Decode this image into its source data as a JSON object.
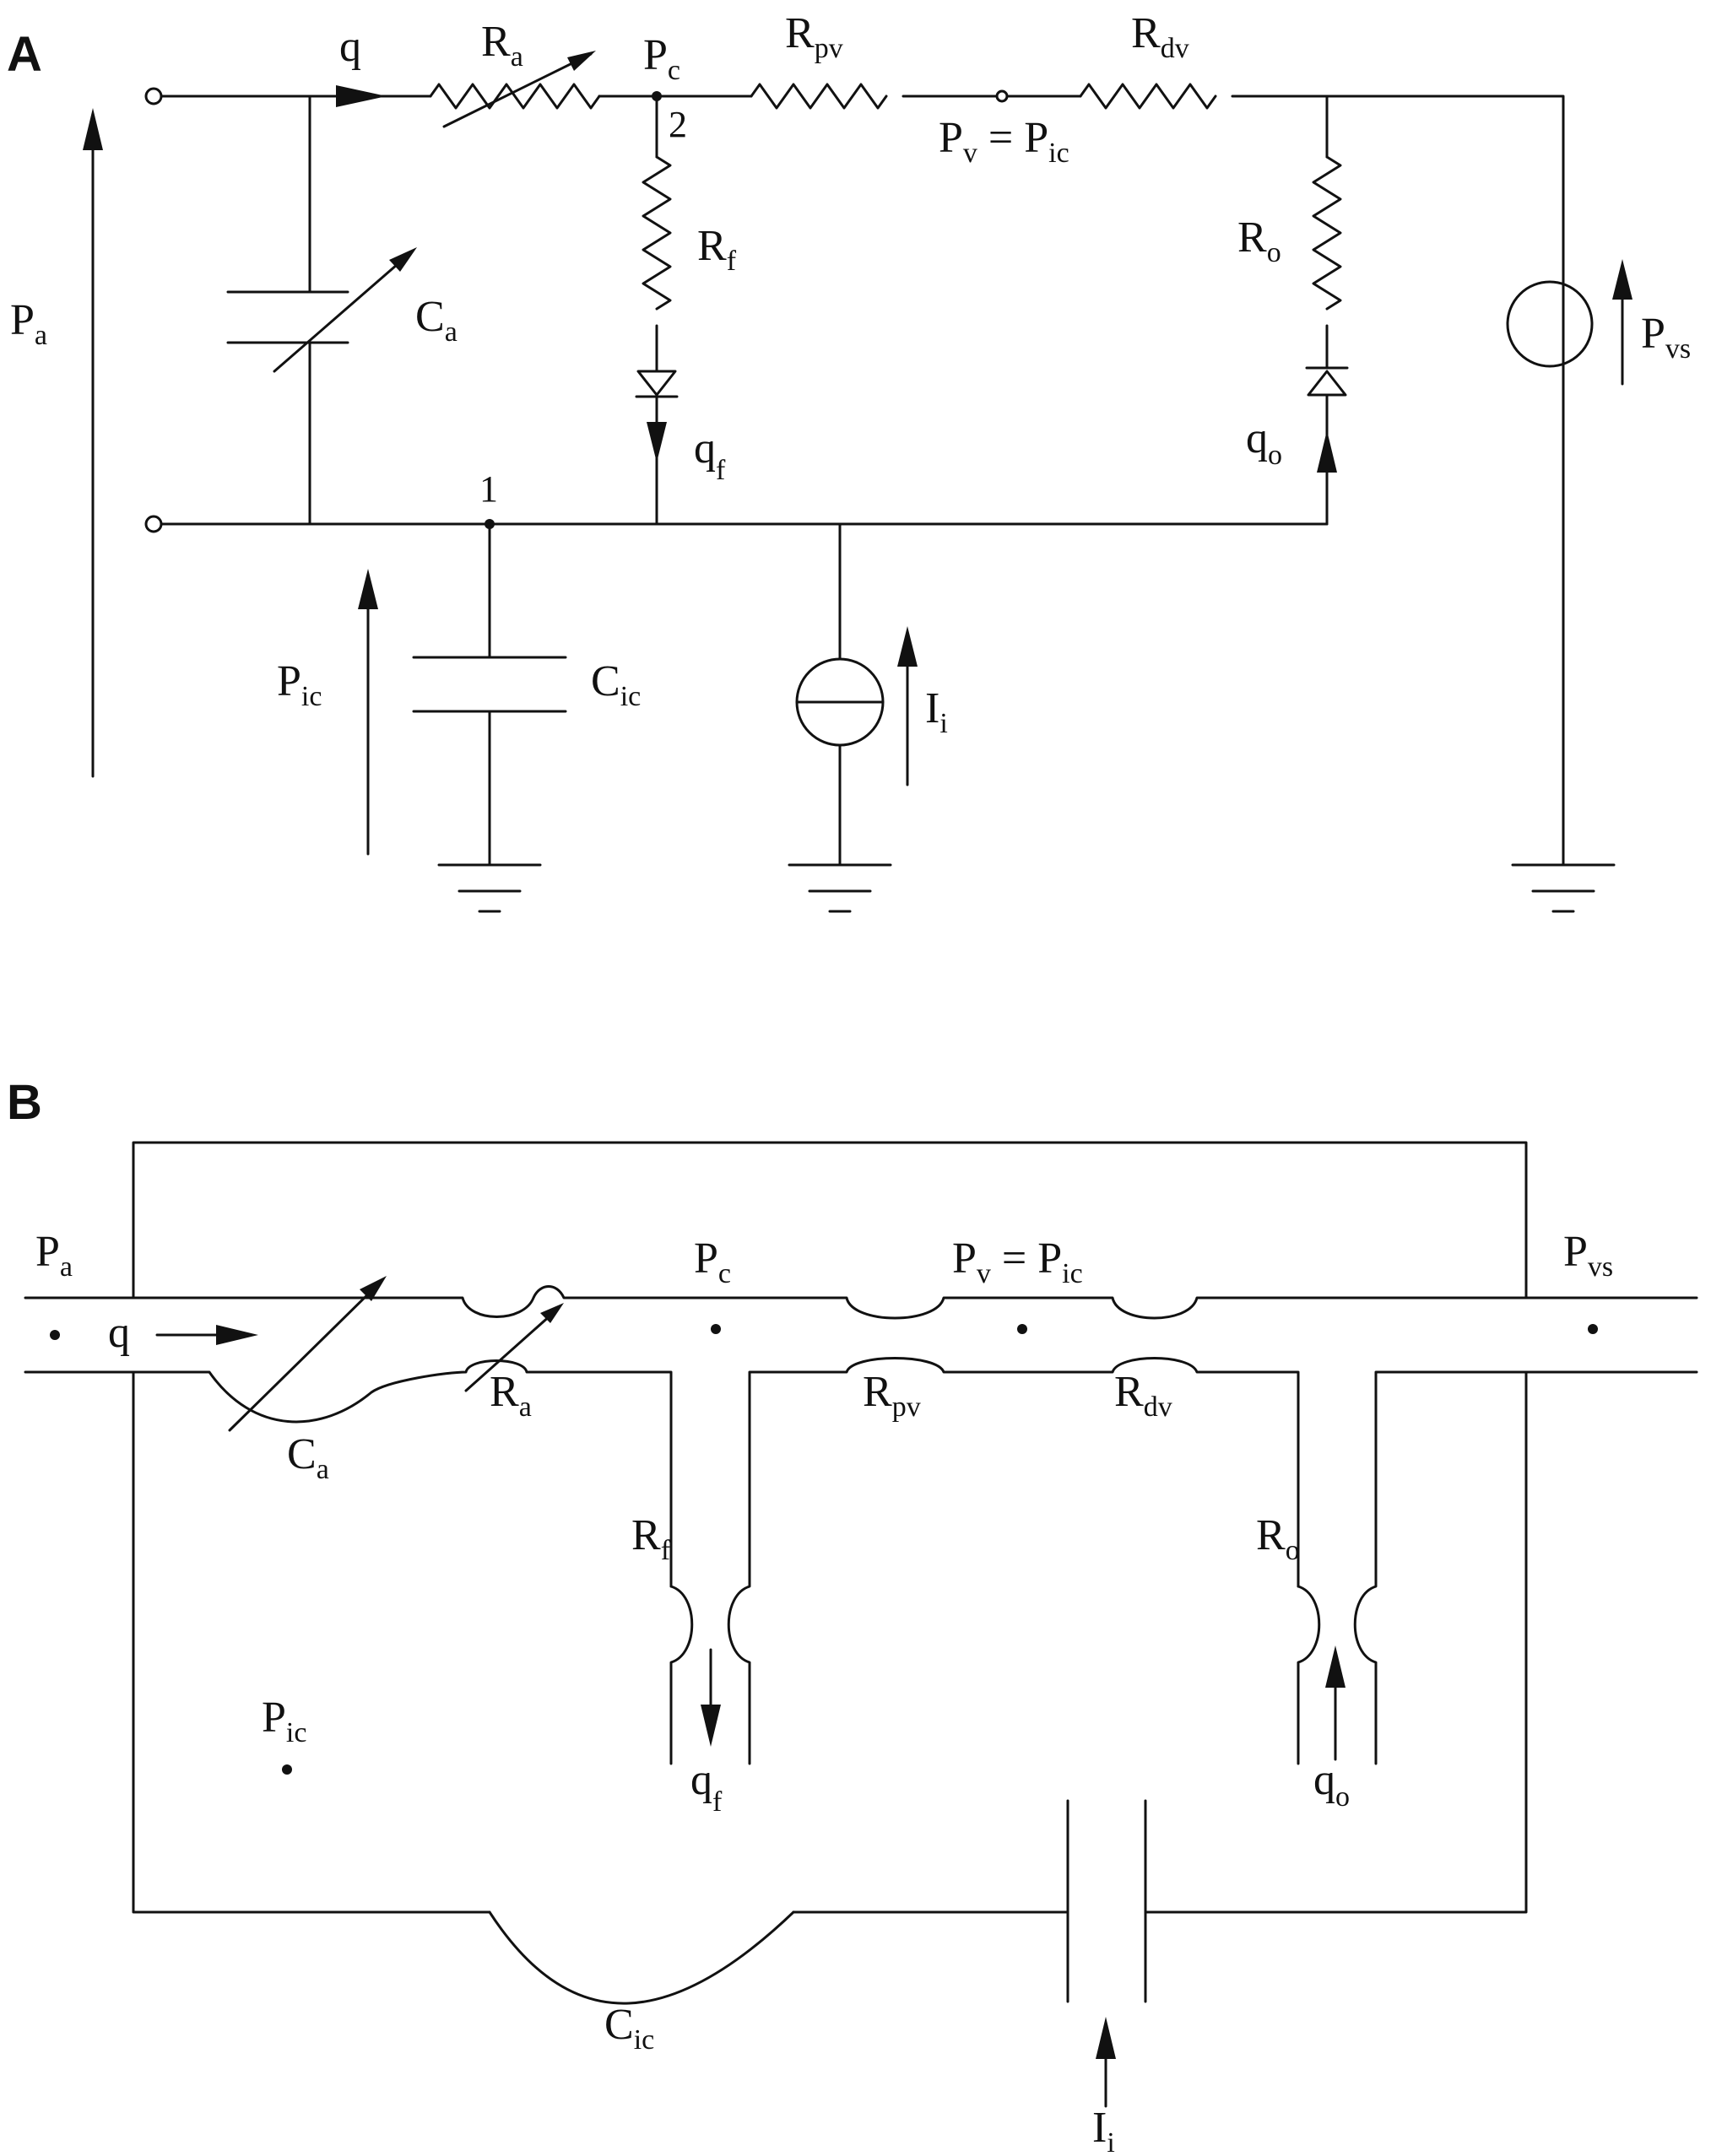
{
  "panels": {
    "a": "A",
    "b": "B"
  },
  "circuit_a": {
    "q": "q",
    "Ra": {
      "main": "R",
      "sub": "a"
    },
    "Pc": {
      "main": "P",
      "sub": "c"
    },
    "node2": "2",
    "Rpv": {
      "main": "R",
      "sub": "pv"
    },
    "Rdv": {
      "main": "R",
      "sub": "dv"
    },
    "Pv_eq": {
      "main": "P",
      "sub": "v",
      "eq": " = P",
      "sub2": "ic"
    },
    "Rf": {
      "main": "R",
      "sub": "f"
    },
    "Ro": {
      "main": "R",
      "sub": "o"
    },
    "Pa": {
      "main": "P",
      "sub": "a"
    },
    "Ca": {
      "main": "C",
      "sub": "a"
    },
    "qf": {
      "main": "q",
      "sub": "f"
    },
    "qo": {
      "main": "q",
      "sub": "o"
    },
    "Pvs": {
      "main": "P",
      "sub": "vs"
    },
    "node1": "1",
    "Pic": {
      "main": "P",
      "sub": "ic"
    },
    "Cic": {
      "main": "C",
      "sub": "ic"
    },
    "Ii": {
      "main": "I",
      "sub": "i"
    }
  },
  "model_b": {
    "Pa": {
      "main": "P",
      "sub": "a"
    },
    "q": "q",
    "Pc": {
      "main": "P",
      "sub": "c"
    },
    "Pv_eq": {
      "main": "P",
      "sub": "v",
      "eq": " = P",
      "sub2": "ic"
    },
    "Pvs": {
      "main": "P",
      "sub": "vs"
    },
    "Ra": {
      "main": "R",
      "sub": "a"
    },
    "Rpv": {
      "main": "R",
      "sub": "pv"
    },
    "Rdv": {
      "main": "R",
      "sub": "dv"
    },
    "Ca": {
      "main": "C",
      "sub": "a"
    },
    "Rf": {
      "main": "R",
      "sub": "f"
    },
    "Ro": {
      "main": "R",
      "sub": "o"
    },
    "Pic": {
      "main": "P",
      "sub": "ic"
    },
    "qf": {
      "main": "q",
      "sub": "f"
    },
    "qo": {
      "main": "q",
      "sub": "o"
    },
    "Cic": {
      "main": "C",
      "sub": "ic"
    },
    "Ii": {
      "main": "I",
      "sub": "i"
    }
  }
}
